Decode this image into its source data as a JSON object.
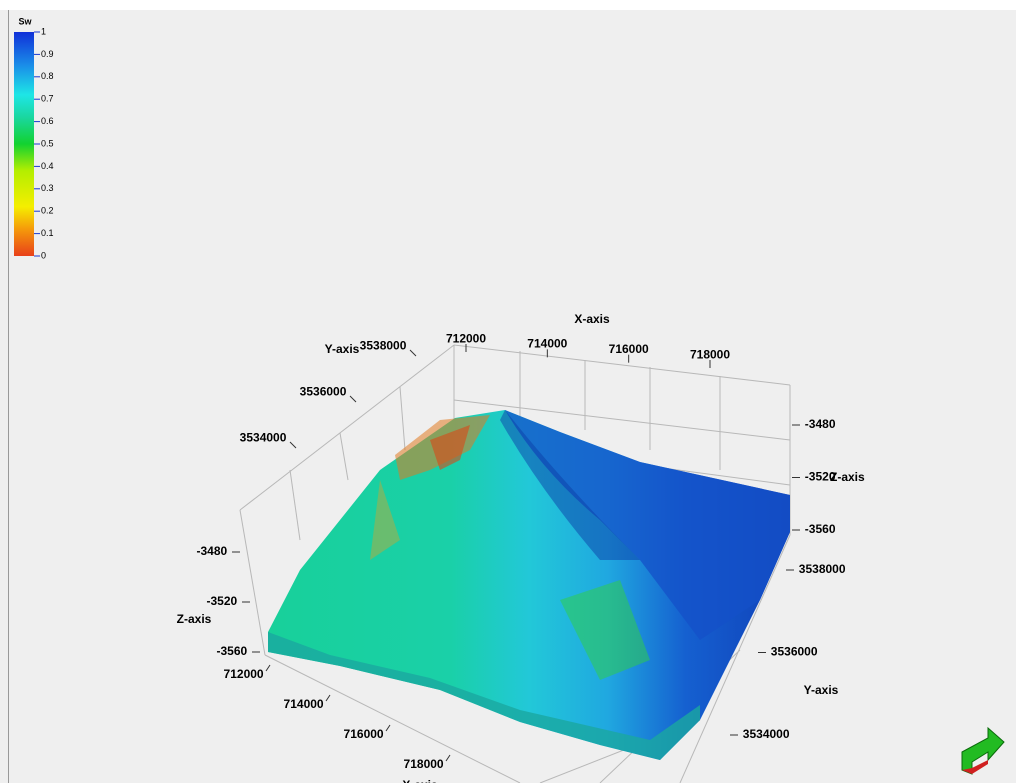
{
  "chart_data": {
    "type": "surface3d",
    "colorbar": {
      "title": "Sw",
      "ticks": [
        0,
        0.1,
        0.2,
        0.3,
        0.4,
        0.5,
        0.6,
        0.7,
        0.8,
        0.9,
        1
      ]
    },
    "x_label": "X-axis",
    "y_label": "Y-axis",
    "z_label": "Z-axis",
    "xticks": [
      712000,
      714000,
      716000,
      718000
    ],
    "yticks": [
      3534000,
      3536000,
      3538000
    ],
    "zticks": [
      -3480,
      -3520,
      -3560
    ]
  }
}
